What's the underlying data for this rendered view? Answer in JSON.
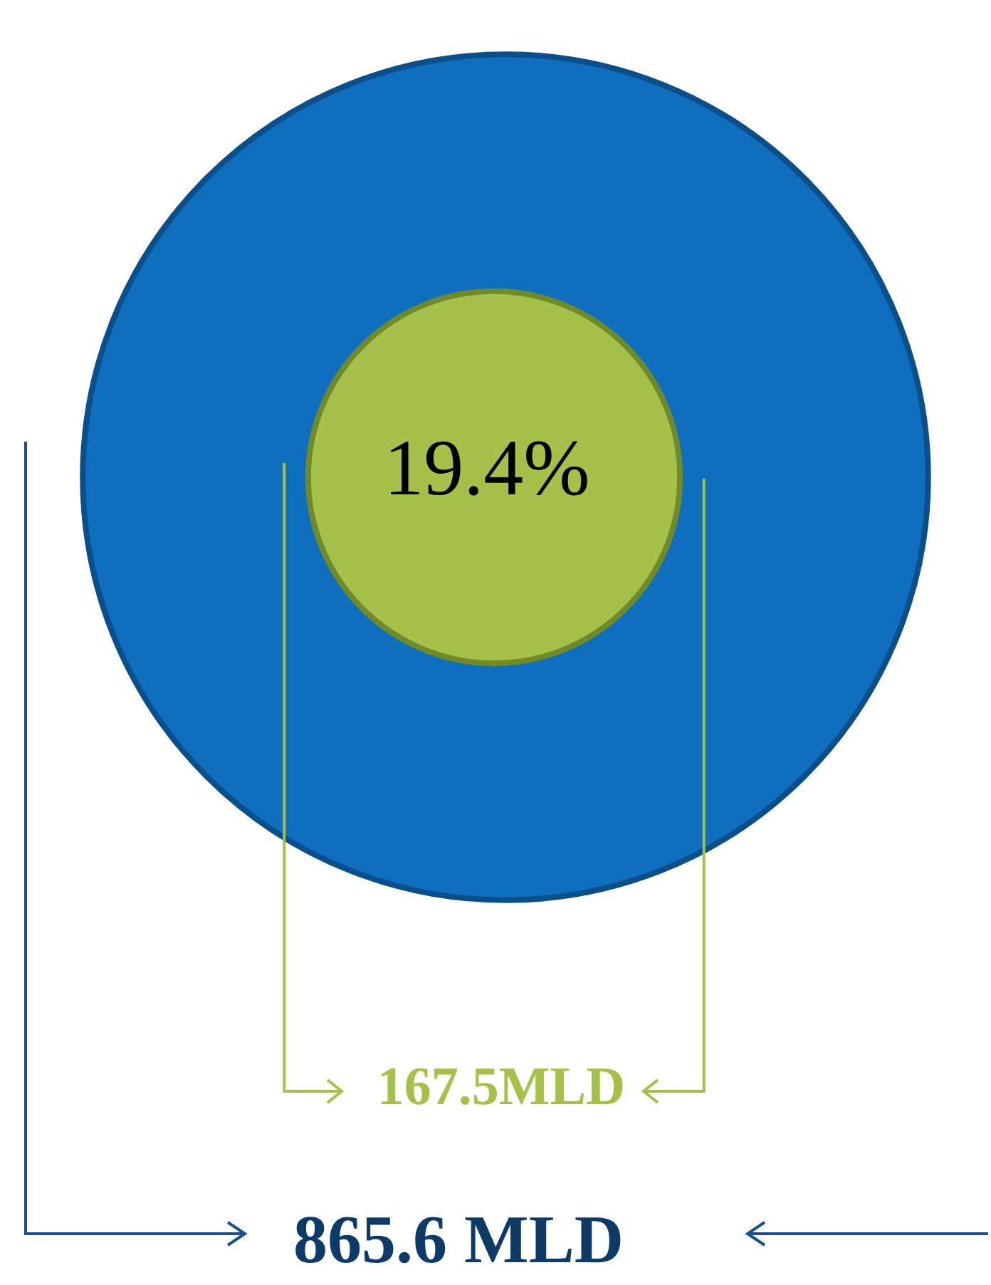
{
  "chart_data": {
    "type": "other",
    "categories": [
      null,
      null
    ],
    "values": [
      865.6,
      167.5
    ],
    "value_labels": [
      "865.6 MLD",
      "167.5MLD"
    ],
    "colors": [
      "#106ebe",
      "#a5c14a"
    ],
    "annotations": [
      "19.4%"
    ]
  }
}
